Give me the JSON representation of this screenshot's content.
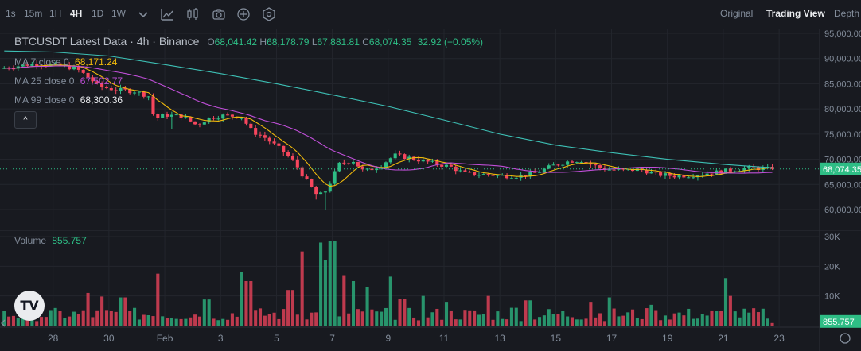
{
  "toolbar": {
    "intervals": [
      "1s",
      "15m",
      "1H",
      "4H",
      "1D",
      "1W"
    ],
    "active_interval": "4H",
    "views": [
      "Original",
      "Trading View",
      "Depth"
    ],
    "active_view": "Trading View",
    "icons": [
      "chevron-down-icon",
      "indicators-icon",
      "candle-settings-icon",
      "camera-icon",
      "plus-circle-icon",
      "settings-hex-icon"
    ]
  },
  "legend": {
    "symbol": "BTCUSDT Latest Data",
    "interval": "4h",
    "exchange": "Binance",
    "o_label": "O",
    "open": "68,041.42",
    "h_label": "H",
    "high": "68,178.79",
    "l_label": "L",
    "low": "67,881.81",
    "c_label": "C",
    "close": "68,074.35",
    "change": "32.92 (+0.05%)",
    "ma7_label": "MA 7 close 0",
    "ma7_value": "68,171.24",
    "ma25_label": "MA 25 close 0",
    "ma25_value": "67,502.77",
    "ma99_label": "MA 99 close 0",
    "ma99_value": "68,300.36",
    "collapse_symbol": "^"
  },
  "volume_legend": {
    "label": "Volume",
    "value": "855.757"
  },
  "price_badge": "68,074.35",
  "volume_badge": "855.757",
  "logo_text": "TV",
  "colors": {
    "up": "#2ebd85",
    "down": "#f6465d",
    "ma7": "#f0b90b",
    "ma25": "#c04fd8",
    "ma99": "#3dbfb4",
    "background": "#181a20"
  },
  "chart_data": {
    "type": "candlestick",
    "price_axis": {
      "ticks": [
        "95,000.00",
        "90,000.00",
        "85,000.00",
        "80,000.00",
        "75,000.00",
        "70,000.00",
        "65,000.00",
        "60,000.00"
      ],
      "values": [
        95000,
        90000,
        85000,
        80000,
        75000,
        70000,
        65000,
        60000
      ],
      "range": [
        58000,
        96000
      ]
    },
    "volume_axis": {
      "ticks": [
        "30K",
        "20K",
        "10K"
      ],
      "values": [
        30000,
        20000,
        10000
      ],
      "range": [
        0,
        30000
      ]
    },
    "x_ticks": [
      "28",
      "30",
      "Feb",
      "3",
      "5",
      "7",
      "9",
      "11",
      "13",
      "15",
      "17",
      "19",
      "21",
      "23"
    ],
    "x_tick_positions": [
      -4,
      -2,
      0,
      2,
      4,
      6,
      8,
      10,
      12,
      14,
      16,
      18,
      20,
      22
    ],
    "x_range": [
      -5.9,
      23.45
    ],
    "candle_interval_days": 0.1667,
    "first_candle_day": -5.75,
    "price_path": [
      [
        -5.75,
        88000
      ],
      [
        -4.5,
        89000
      ],
      [
        -3.5,
        88500
      ],
      [
        -3.0,
        88000
      ],
      [
        -2.5,
        86000
      ],
      [
        -2.2,
        84500
      ],
      [
        -1.6,
        83800
      ],
      [
        -0.9,
        83500
      ],
      [
        -0.4,
        82500
      ],
      [
        -0.2,
        78000
      ],
      [
        0.2,
        78800
      ],
      [
        0.8,
        78500
      ],
      [
        1.3,
        76800
      ],
      [
        1.8,
        78300
      ],
      [
        2.3,
        78700
      ],
      [
        2.9,
        78500
      ],
      [
        3.3,
        75500
      ],
      [
        3.7,
        74500
      ],
      [
        4.3,
        72000
      ],
      [
        4.8,
        69500
      ],
      [
        5.2,
        66000
      ],
      [
        5.6,
        63000
      ],
      [
        5.85,
        63000
      ],
      [
        6.1,
        65500
      ],
      [
        6.4,
        69000
      ],
      [
        6.9,
        69800
      ],
      [
        7.3,
        67500
      ],
      [
        7.9,
        68800
      ],
      [
        8.4,
        70800
      ],
      [
        9.0,
        70200
      ],
      [
        9.8,
        69200
      ],
      [
        10.4,
        68500
      ],
      [
        10.9,
        67200
      ],
      [
        11.5,
        67000
      ],
      [
        12.4,
        66700
      ],
      [
        12.9,
        66700
      ],
      [
        13.4,
        67200
      ],
      [
        14.1,
        68800
      ],
      [
        14.7,
        69700
      ],
      [
        15.1,
        69800
      ],
      [
        15.5,
        68800
      ],
      [
        16.0,
        68000
      ],
      [
        16.6,
        67800
      ],
      [
        17.2,
        68000
      ],
      [
        17.8,
        67000
      ],
      [
        18.4,
        66700
      ],
      [
        19.0,
        66800
      ],
      [
        19.5,
        67200
      ],
      [
        20.0,
        67500
      ],
      [
        20.5,
        67900
      ],
      [
        21.2,
        68300
      ],
      [
        21.8,
        68074
      ]
    ],
    "low_points": [
      [
        5.8,
        60000
      ],
      [
        0.3,
        76000
      ],
      [
        3.5,
        74200
      ],
      [
        5.4,
        62000
      ]
    ],
    "ma99_path": [
      [
        -5.75,
        91500
      ],
      [
        -4.0,
        91300
      ],
      [
        -2.0,
        90500
      ],
      [
        0.0,
        88800
      ],
      [
        2.0,
        87000
      ],
      [
        4.0,
        85000
      ],
      [
        6.0,
        82800
      ],
      [
        8.0,
        80500
      ],
      [
        10.0,
        77800
      ],
      [
        12.0,
        75000
      ],
      [
        14.0,
        72800
      ],
      [
        16.0,
        71300
      ],
      [
        18.0,
        70000
      ],
      [
        20.0,
        69000
      ],
      [
        21.8,
        68300
      ]
    ],
    "volume_spikes": [
      [
        -0.25,
        17500
      ],
      [
        2.75,
        18000
      ],
      [
        3.0,
        15000
      ],
      [
        4.95,
        25000
      ],
      [
        5.55,
        28000
      ],
      [
        5.7,
        22000
      ],
      [
        5.9,
        28500
      ],
      [
        6.1,
        28500
      ],
      [
        6.4,
        17000
      ],
      [
        6.7,
        15000
      ],
      [
        7.25,
        13000
      ],
      [
        8.05,
        16500
      ],
      [
        9.25,
        10000
      ],
      [
        10.05,
        8000
      ],
      [
        11.55,
        10000
      ],
      [
        13.0,
        8500
      ],
      [
        15.3,
        8000
      ],
      [
        15.9,
        9500
      ],
      [
        17.4,
        7000
      ],
      [
        20.1,
        16000
      ],
      [
        20.3,
        10000
      ],
      [
        -2.75,
        11000
      ],
      [
        -2.2,
        9800
      ],
      [
        -1.5,
        9500
      ],
      [
        1.5,
        8800
      ],
      [
        4.5,
        12000
      ],
      [
        8.5,
        9000
      ],
      [
        12.5,
        6000
      ]
    ],
    "last_price": 68074.35,
    "ma7": 68171.24,
    "ma25": 67502.77,
    "ma99": 68300.36,
    "volume_last": 855.757,
    "grid": true
  }
}
